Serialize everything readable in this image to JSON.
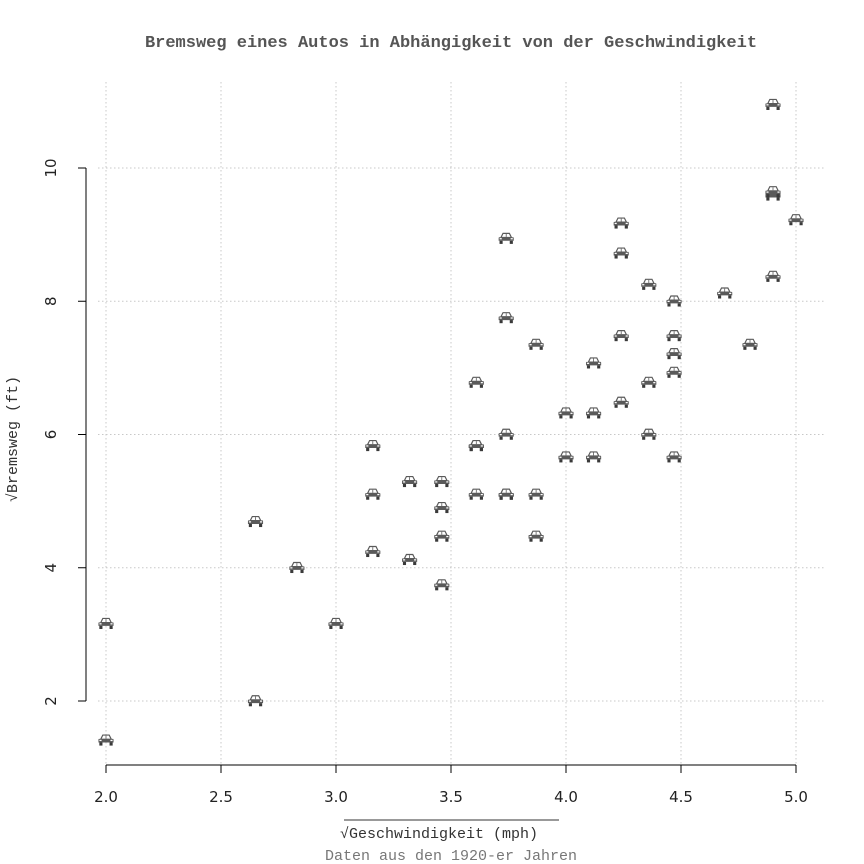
{
  "chart_data": {
    "type": "scatter",
    "title": "Bremsweg eines Autos in Abhängigkeit von der Geschwindigkeit",
    "xlabel": "Geschwindigkeit (mph)",
    "ylabel": "Bremsweg (ft)",
    "axis_label_prefix": "√",
    "caption": "Daten aus den 1920-er Jahren",
    "x_scale": "sqrt",
    "y_scale": "sqrt",
    "xlim": [
      2.0,
      5.0
    ],
    "ylim": [
      1.0,
      11.5
    ],
    "x_ticks": [
      "2.0",
      "2.5",
      "3.0",
      "3.5",
      "4.0",
      "4.5",
      "5.0"
    ],
    "y_ticks": [
      "2",
      "4",
      "6",
      "8",
      "10"
    ],
    "grid": true,
    "marker": "car-icon",
    "colors": {
      "marker": "#555555",
      "grid": "#c8c8c8",
      "text": "#444444",
      "axis": "#000000"
    },
    "x": [
      2.0,
      2.0,
      2.65,
      2.65,
      2.83,
      3.0,
      3.16,
      3.16,
      3.16,
      3.32,
      3.32,
      3.46,
      3.46,
      3.46,
      3.46,
      3.61,
      3.61,
      3.61,
      3.61,
      3.74,
      3.74,
      3.74,
      3.74,
      3.74,
      3.87,
      3.87,
      3.87,
      4.0,
      4.0,
      4.12,
      4.12,
      4.12,
      4.24,
      4.24,
      4.24,
      4.24,
      4.36,
      4.36,
      4.36,
      4.47,
      4.47,
      4.47,
      4.47,
      4.47,
      4.69,
      4.8,
      4.9,
      4.9,
      4.9,
      4.9,
      5.0
    ],
    "y": [
      1.41,
      3.16,
      2.0,
      4.69,
      4.0,
      3.16,
      4.24,
      5.1,
      5.83,
      4.12,
      5.29,
      3.74,
      4.47,
      4.9,
      5.29,
      5.1,
      5.83,
      5.83,
      6.78,
      5.1,
      6.0,
      7.75,
      8.94,
      5.1,
      4.47,
      5.1,
      7.35,
      5.66,
      6.32,
      5.66,
      6.32,
      7.07,
      6.48,
      7.48,
      8.72,
      9.17,
      6.0,
      6.78,
      8.25,
      5.66,
      6.93,
      7.21,
      7.48,
      8.0,
      8.12,
      7.35,
      8.37,
      9.59,
      9.64,
      10.95,
      9.22
    ]
  }
}
